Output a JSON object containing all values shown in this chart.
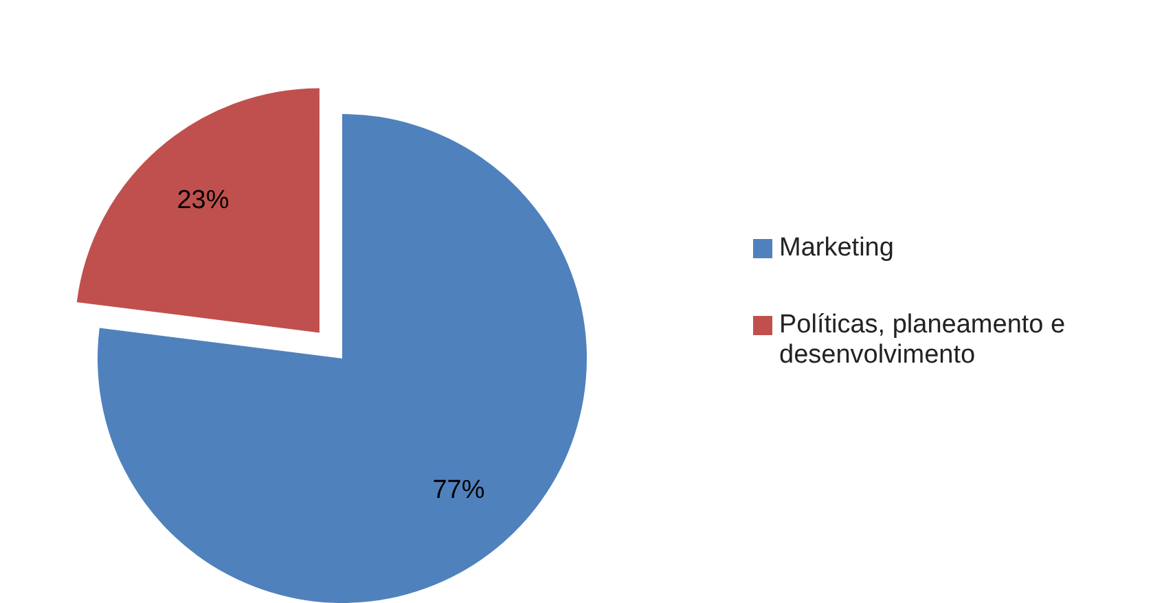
{
  "chart_data": {
    "type": "pie",
    "categories": [
      "Marketing",
      "Políticas, planeamento e desenvolvimento"
    ],
    "values": [
      77,
      23
    ],
    "colors": [
      "#4f81bd",
      "#c0504d"
    ],
    "value_labels": [
      "77%",
      "23%"
    ],
    "legend": "right"
  }
}
